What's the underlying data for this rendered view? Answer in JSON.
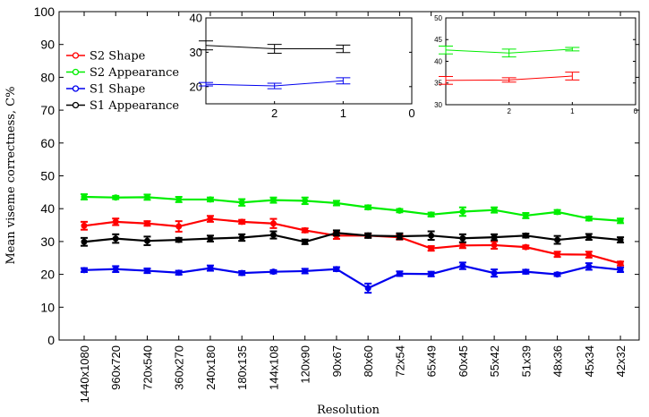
{
  "chart_data": [
    {
      "id": "main",
      "type": "line",
      "title": "",
      "xlabel": "Resolution",
      "ylabel": "Mean viseme correctness, C%",
      "ylim": [
        0,
        100
      ],
      "yticks": [
        0,
        10,
        20,
        30,
        40,
        50,
        60,
        70,
        80,
        90,
        100
      ],
      "categories": [
        "1440x1080",
        "960x720",
        "720x540",
        "360x270",
        "240x180",
        "180x135",
        "144x108",
        "120x90",
        "90x67",
        "80x60",
        "72x54",
        "65x49",
        "60x45",
        "55x42",
        "51x39",
        "48x36",
        "45x34",
        "42x32"
      ],
      "legend_position": "top-left",
      "series": [
        {
          "name": "S2 Shape",
          "color": "#ff0000",
          "marker": "o",
          "values": [
            34.8,
            36.0,
            35.5,
            34.6,
            36.9,
            36.0,
            35.5,
            33.4,
            31.8,
            31.8,
            31.3,
            27.9,
            28.8,
            28.9,
            28.3,
            26.1,
            26.0,
            23.3
          ],
          "errors": [
            1.2,
            1.0,
            0.7,
            1.6,
            0.9,
            0.6,
            1.4,
            0.6,
            1.0,
            0.6,
            0.7,
            0.7,
            0.8,
            1.1,
            0.5,
            0.8,
            0.9,
            0.6
          ]
        },
        {
          "name": "S2 Appearance",
          "color": "#00ee00",
          "marker": "o",
          "values": [
            43.6,
            43.4,
            43.5,
            42.8,
            42.8,
            41.9,
            42.6,
            42.4,
            41.7,
            40.4,
            39.4,
            38.2,
            39.1,
            39.6,
            37.9,
            39.0,
            37.0,
            36.3
          ],
          "errors": [
            0.8,
            0.5,
            0.8,
            0.8,
            0.6,
            1.0,
            0.8,
            1.0,
            0.7,
            0.6,
            0.5,
            0.6,
            1.3,
            0.8,
            0.8,
            0.6,
            0.6,
            0.7
          ]
        },
        {
          "name": "S1 Shape",
          "color": "#0000ee",
          "marker": "o",
          "values": [
            21.3,
            21.6,
            21.1,
            20.5,
            21.9,
            20.4,
            20.8,
            21.0,
            21.6,
            15.8,
            20.2,
            20.1,
            22.6,
            20.4,
            20.8,
            20.0,
            22.4,
            21.4
          ],
          "errors": [
            0.6,
            0.9,
            0.7,
            0.6,
            0.8,
            0.6,
            0.5,
            0.7,
            0.6,
            1.4,
            0.7,
            0.7,
            1.0,
            1.1,
            0.6,
            0.5,
            1.0,
            0.7
          ]
        },
        {
          "name": "S1 Appearance",
          "color": "#000000",
          "marker": "o",
          "values": [
            29.9,
            30.9,
            30.2,
            30.5,
            30.9,
            31.2,
            32.0,
            29.9,
            32.6,
            31.8,
            31.6,
            31.8,
            31.0,
            31.3,
            31.8,
            30.5,
            31.4,
            30.5
          ],
          "errors": [
            1.2,
            1.3,
            1.3,
            0.6,
            0.9,
            1.0,
            1.1,
            0.7,
            0.8,
            0.7,
            0.9,
            1.3,
            1.2,
            0.9,
            0.6,
            1.2,
            0.9,
            0.8
          ]
        }
      ]
    },
    {
      "id": "inset1",
      "type": "line",
      "xlim": [
        3,
        0
      ],
      "xticks": [
        "2",
        "1",
        "0"
      ],
      "ylim": [
        15,
        40
      ],
      "yticks": [
        "20",
        "30",
        "40"
      ],
      "series": [
        {
          "name": "S1 Appearance",
          "color": "#000000",
          "x": [
            3,
            2,
            1
          ],
          "values": [
            32.0,
            31.0,
            31.0
          ],
          "errors": [
            1.3,
            1.3,
            1.1
          ]
        },
        {
          "name": "S1 Shape",
          "color": "#0000ee",
          "x": [
            3,
            2,
            1
          ],
          "values": [
            20.7,
            20.2,
            21.7
          ],
          "errors": [
            0.5,
            0.8,
            0.9
          ]
        }
      ]
    },
    {
      "id": "inset2",
      "type": "line",
      "xlim": [
        3,
        0
      ],
      "xticks": [
        "2",
        "1",
        "0"
      ],
      "ylim": [
        30,
        50
      ],
      "yticks": [
        "30",
        "35",
        "40",
        "45",
        "50"
      ],
      "series": [
        {
          "name": "S2 Appearance",
          "color": "#00ee00",
          "x": [
            3,
            2,
            1
          ],
          "values": [
            42.6,
            41.9,
            42.8
          ],
          "errors": [
            0.9,
            0.9,
            0.4
          ]
        },
        {
          "name": "S2 Shape",
          "color": "#ff0000",
          "x": [
            3,
            2,
            1
          ],
          "values": [
            35.6,
            35.7,
            36.6
          ],
          "errors": [
            0.9,
            0.5,
            0.9
          ]
        }
      ]
    }
  ]
}
